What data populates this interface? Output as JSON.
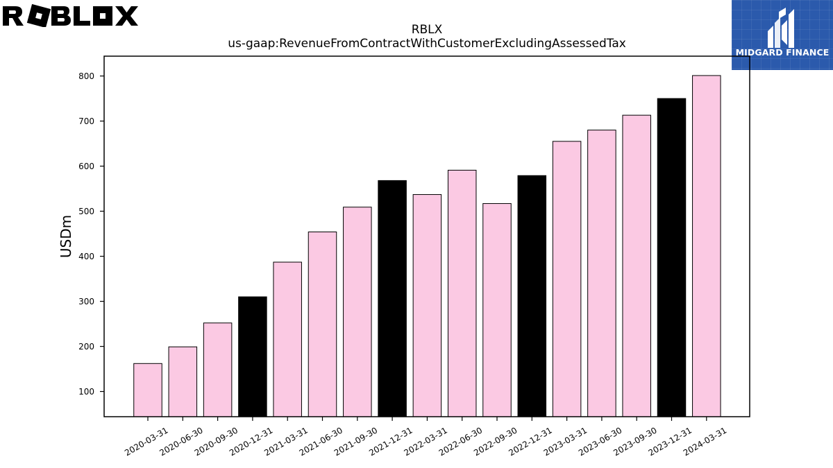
{
  "logos": {
    "left_wordmark": "ROBLOX",
    "right_brand": "MIDGARD FINANCE"
  },
  "colors": {
    "bar_pink": "#fbc9e3",
    "bar_black": "#000000",
    "bar_edge": "#000000",
    "brand_blue": "#2b5aac"
  },
  "chart_data": {
    "type": "bar",
    "title": "RBLX",
    "subtitle": "us-gaap:RevenueFromContractWithCustomerExcludingAssessedTax",
    "xlabel": "",
    "ylabel": "USDm",
    "ylim": [
      44,
      844
    ],
    "yticks": [
      100,
      200,
      300,
      400,
      500,
      600,
      700,
      800
    ],
    "grid": false,
    "categories": [
      "2020-03-31",
      "2020-06-30",
      "2020-09-30",
      "2020-12-31",
      "2021-03-31",
      "2021-06-30",
      "2021-09-30",
      "2021-12-31",
      "2022-03-31",
      "2022-06-30",
      "2022-09-30",
      "2022-12-31",
      "2023-03-31",
      "2023-06-30",
      "2023-09-30",
      "2023-12-31",
      "2024-03-31"
    ],
    "values": [
      162,
      199,
      252,
      310,
      387,
      454,
      509,
      568,
      537,
      591,
      517,
      579,
      655,
      680,
      713,
      750,
      801
    ],
    "highlight": [
      false,
      false,
      false,
      true,
      false,
      false,
      false,
      true,
      false,
      false,
      false,
      true,
      false,
      false,
      false,
      true,
      false
    ]
  }
}
